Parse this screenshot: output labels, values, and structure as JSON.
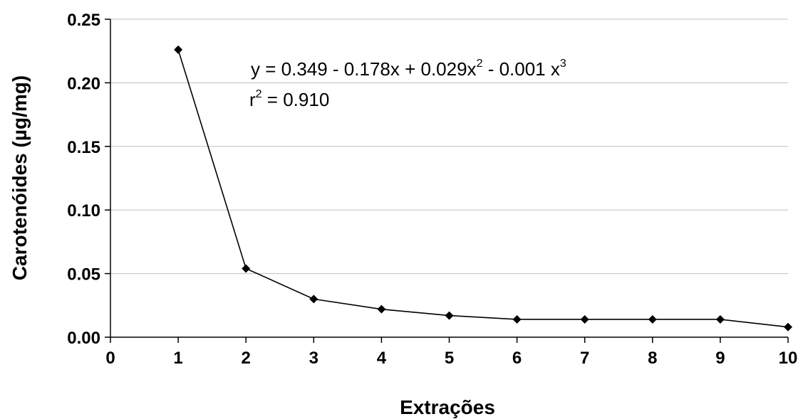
{
  "chart_data": {
    "type": "line",
    "title": "",
    "xlabel": "Extrações",
    "ylabel": "Carotenóides (µg/mg)",
    "xlim": [
      0,
      10
    ],
    "ylim": [
      0,
      0.25
    ],
    "x_ticks": [
      "0",
      "1",
      "2",
      "3",
      "4",
      "5",
      "6",
      "7",
      "8",
      "9",
      "10"
    ],
    "y_ticks": [
      "0.00",
      "0.05",
      "0.10",
      "0.15",
      "0.20",
      "0.25"
    ],
    "grid": "horizontal",
    "marker": "diamond",
    "series": [
      {
        "x": [
          1,
          2,
          3,
          4,
          5,
          6,
          7,
          8,
          9,
          10
        ],
        "values": [
          0.226,
          0.054,
          0.03,
          0.022,
          0.017,
          0.014,
          0.014,
          0.014,
          0.014,
          0.008
        ]
      }
    ],
    "annotations": {
      "equation": {
        "prefix": "y = 0.349 - 0.178x + 0.029x",
        "exp1": "2",
        "middle": " - 0.001 x",
        "exp2": "3"
      },
      "r2": {
        "base": "r",
        "exp": "2",
        "rest": " = 0.910"
      }
    },
    "colors": {
      "line": "#000000",
      "grid": "#c0c0c0",
      "axis": "#000000"
    }
  }
}
